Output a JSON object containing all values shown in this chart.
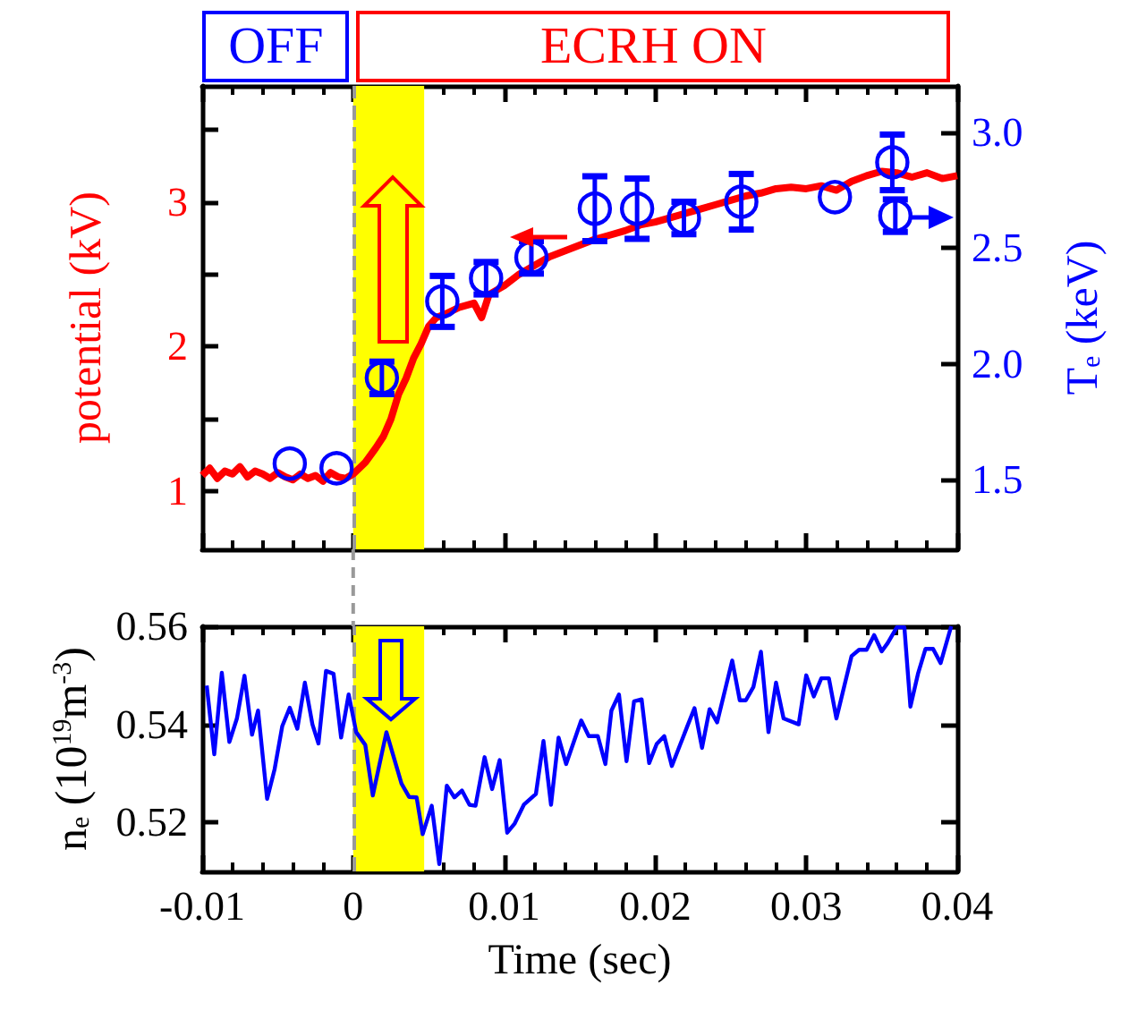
{
  "chart_data": [
    {
      "type": "line",
      "ylabel": "potential (kV)",
      "y2label": "T$_{e}$ (keV)",
      "annotations": [
        "OFF",
        "ECRH ON"
      ],
      "xlim": [
        -0.01,
        0.04
      ],
      "xticks": [
        -0.01,
        0,
        0.01,
        0.02,
        0.03,
        0.04
      ],
      "ylim": [
        0.6,
        3.8
      ],
      "y2lim": [
        1.2,
        3.2
      ],
      "tick_labels": "y",
      "grid": false,
      "yticks": [
        1,
        {
          "value": 1.5,
          "label": null
        },
        2,
        {
          "value": 2.5,
          "label": null
        },
        3,
        {
          "value": 3.5,
          "label": null
        }
      ],
      "y2ticks": [
        1.5,
        {
          "value": 2,
          "label": "2.0"
        },
        2.5,
        {
          "value": 3,
          "label": "3.0"
        }
      ],
      "ref_lines": [
        {
          "axis": "x",
          "value": 0,
          "label": null,
          "color": "#999999",
          "line_style": "dashed"
        }
      ],
      "bands": [
        {
          "axis": "x",
          "from": 0,
          "to": 0.0047,
          "label": null,
          "color": "#ffff00"
        }
      ],
      "series": [
        {
          "color": "#ff0000",
          "marker": "none",
          "x": [
            -0.01,
            -0.0095,
            -0.009,
            -0.0085,
            -0.008,
            -0.0075,
            -0.007,
            -0.0065,
            -0.006,
            -0.0055,
            -0.005,
            -0.0045,
            -0.004,
            -0.0035,
            -0.003,
            -0.0025,
            -0.002,
            -0.0015,
            -0.001,
            -0.0005,
            0,
            0.0008,
            0.0015,
            0.002,
            0.0025,
            0.003,
            0.0035,
            0.004,
            0.0045,
            0.005,
            0.0055,
            0.006,
            0.007,
            0.008,
            0.0085,
            0.009,
            0.01,
            0.011,
            0.012,
            0.013,
            0.014,
            0.015,
            0.016,
            0.017,
            0.018,
            0.019,
            0.02,
            0.021,
            0.022,
            0.023,
            0.024,
            0.025,
            0.026,
            0.027,
            0.028,
            0.029,
            0.03,
            0.031,
            0.032,
            0.033,
            0.034,
            0.035,
            0.036,
            0.037,
            0.038,
            0.039,
            0.04
          ],
          "values": [
            1.11,
            1.16,
            1.09,
            1.14,
            1.12,
            1.17,
            1.1,
            1.14,
            1.12,
            1.09,
            1.13,
            1.1,
            1.08,
            1.12,
            1.09,
            1.11,
            1.07,
            1.13,
            1.1,
            1.09,
            1.12,
            1.2,
            1.3,
            1.38,
            1.5,
            1.67,
            1.78,
            1.92,
            2.02,
            2.14,
            2.2,
            2.22,
            2.27,
            2.3,
            2.2,
            2.36,
            2.42,
            2.5,
            2.56,
            2.62,
            2.66,
            2.7,
            2.74,
            2.77,
            2.8,
            2.84,
            2.86,
            2.89,
            2.92,
            2.95,
            2.98,
            3.01,
            3.04,
            3.06,
            3.09,
            3.1,
            3.09,
            3.11,
            3.08,
            3.14,
            3.18,
            3.21,
            3.2,
            3.17,
            3.2,
            3.16,
            3.18
          ]
        },
        {
          "type": "scatter",
          "axis": "y2",
          "color": "#0000ff",
          "marker": "circle",
          "x": [
            -0.0042,
            -0.0011,
            0.0019,
            0.0059,
            0.0088,
            0.0118,
            0.016,
            0.0188,
            0.0219,
            0.0257,
            0.0319,
            0.0357,
            0.0359
          ],
          "values": [
            1.57,
            1.55,
            1.94,
            2.27,
            2.37,
            2.46,
            2.67,
            2.67,
            2.63,
            2.7,
            2.72,
            2.87,
            2.64
          ],
          "errors": [
            null,
            null,
            0.07,
            0.11,
            0.07,
            0.07,
            0.14,
            0.13,
            0.07,
            0.12,
            null,
            0.12,
            0.07
          ]
        }
      ]
    },
    {
      "type": "line",
      "ylabel": "n$_{e}$ (10$^{19}$m$^{-3}$)",
      "xlabel": "Time (sec)",
      "xlim": [
        -0.01,
        0.04
      ],
      "ylim": [
        0.51,
        0.56
      ],
      "grid": false,
      "xticks": [
        -0.01,
        0,
        0.01,
        0.02,
        0.03,
        0.04
      ],
      "yticks": [
        0.52,
        0.54,
        0.56
      ],
      "ref_lines": [
        {
          "axis": "x",
          "value": 0,
          "label": null,
          "color": "#999999",
          "line_style": "dashed"
        }
      ],
      "bands": [
        {
          "axis": "x",
          "from": 0,
          "to": 0.0047,
          "label": null,
          "color": "#ffff00"
        }
      ],
      "series": [
        {
          "color": "#0000ff",
          "marker": "none",
          "x": [
            -0.0097,
            -0.0092,
            -0.0087,
            -0.0082,
            -0.0077,
            -0.0072,
            -0.0067,
            -0.0063,
            -0.0057,
            -0.0052,
            -0.0047,
            -0.0042,
            -0.0037,
            -0.0032,
            -0.0027,
            -0.0023,
            -0.0018,
            -0.0013,
            -0.0008,
            -0.0003,
            0.0002,
            0.0008,
            0.0013,
            0.0022,
            0.0032,
            0.0037,
            0.0042,
            0.0046,
            0.0052,
            0.0057,
            0.0062,
            0.0067,
            0.0072,
            0.0077,
            0.0081,
            0.0087,
            0.0092,
            0.0097,
            0.0102,
            0.0107,
            0.0113,
            0.0121,
            0.0126,
            0.0131,
            0.0136,
            0.0141,
            0.0151,
            0.0156,
            0.0162,
            0.0167,
            0.0171,
            0.0176,
            0.0181,
            0.0186,
            0.0191,
            0.0196,
            0.0201,
            0.0206,
            0.0211,
            0.0221,
            0.0226,
            0.0231,
            0.0236,
            0.0241,
            0.0251,
            0.0256,
            0.026,
            0.0265,
            0.027,
            0.0275,
            0.028,
            0.0285,
            0.0295,
            0.03,
            0.0305,
            0.031,
            0.0315,
            0.032,
            0.033,
            0.0335,
            0.034,
            0.0345,
            0.035,
            0.0354,
            0.036,
            0.0365,
            0.0369,
            0.0374,
            0.0379,
            0.0384,
            0.0389,
            0.0396
          ],
          "values": [
            0.5479,
            0.5339,
            0.5505,
            0.5364,
            0.5412,
            0.5499,
            0.5379,
            0.5428,
            0.5248,
            0.5309,
            0.5396,
            0.5434,
            0.5391,
            0.5485,
            0.54,
            0.5361,
            0.5509,
            0.5503,
            0.5373,
            0.5461,
            0.5384,
            0.5358,
            0.5255,
            0.5384,
            0.5279,
            0.5252,
            0.5251,
            0.5176,
            0.5234,
            0.5115,
            0.5275,
            0.5251,
            0.5265,
            0.5236,
            0.5234,
            0.5333,
            0.5268,
            0.5327,
            0.5179,
            0.5198,
            0.5236,
            0.5258,
            0.5366,
            0.5236,
            0.5373,
            0.5319,
            0.5408,
            0.5376,
            0.5376,
            0.5319,
            0.5428,
            0.5461,
            0.5325,
            0.5447,
            0.5451,
            0.5321,
            0.536,
            0.5376,
            0.5315,
            0.5394,
            0.5433,
            0.5352,
            0.5431,
            0.5404,
            0.553,
            0.5449,
            0.5449,
            0.5476,
            0.5548,
            0.5384,
            0.5485,
            0.5412,
            0.54,
            0.55,
            0.5457,
            0.5494,
            0.5494,
            0.5412,
            0.5539,
            0.5552,
            0.5552,
            0.5582,
            0.5549,
            0.5566,
            0.5598,
            0.5598,
            0.5436,
            0.5503,
            0.5554,
            0.5554,
            0.5525,
            0.56
          ]
        }
      ]
    }
  ]
}
